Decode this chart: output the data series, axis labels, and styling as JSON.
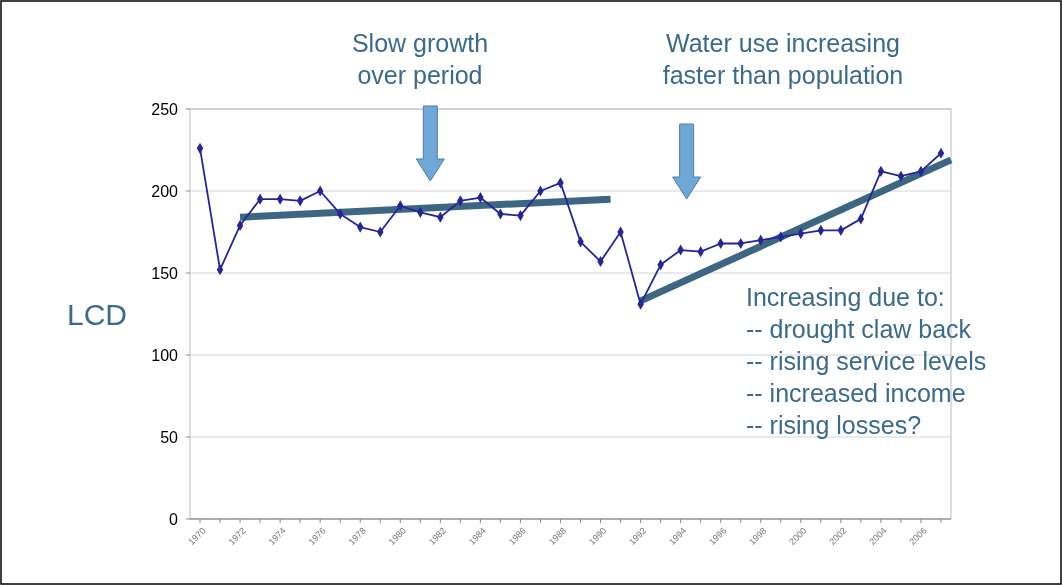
{
  "chart_data": {
    "type": "line",
    "ylabel": "LCD",
    "x": [
      1970,
      1971,
      1972,
      1973,
      1974,
      1975,
      1976,
      1977,
      1978,
      1979,
      1980,
      1981,
      1982,
      1983,
      1984,
      1985,
      1986,
      1987,
      1988,
      1989,
      1990,
      1991,
      1992,
      1993,
      1994,
      1995,
      1996,
      1997,
      1998,
      1999,
      2000,
      2001,
      2002,
      2003,
      2004,
      2005,
      2006,
      2007
    ],
    "series": [
      {
        "color": "#25259a",
        "marker": "diamond",
        "values": [
          226,
          152,
          179,
          195,
          195,
          194,
          200,
          186,
          178,
          175,
          191,
          187,
          184,
          194,
          196,
          186,
          185,
          200,
          205,
          169,
          157,
          175,
          131,
          155,
          164,
          163,
          168,
          168,
          170,
          172,
          174,
          176,
          176,
          183,
          212,
          209,
          212,
          223
        ]
      },
      {
        "type": "line",
        "color": "#3d6683",
        "marker": "none",
        "x": [
          1972,
          1990.5
        ],
        "values": [
          184,
          195
        ]
      },
      {
        "type": "line",
        "color": "#3d6683",
        "marker": "none",
        "x": [
          1992,
          2007.5
        ],
        "values": [
          133,
          219
        ]
      }
    ],
    "xlim": [
      1969.5,
      2007.5
    ],
    "xticks": [
      1970,
      {
        "value": 1971,
        "label": null
      },
      1972,
      {
        "value": 1973,
        "label": null
      },
      1974,
      {
        "value": 1975,
        "label": null
      },
      1976,
      {
        "value": 1977,
        "label": null
      },
      1978,
      {
        "value": 1979,
        "label": null
      },
      1980,
      {
        "value": 1981,
        "label": null
      },
      1982,
      {
        "value": 1983,
        "label": null
      },
      1984,
      {
        "value": 1985,
        "label": null
      },
      1986,
      {
        "value": 1987,
        "label": null
      },
      1988,
      {
        "value": 1989,
        "label": null
      },
      1990,
      {
        "value": 1991,
        "label": null
      },
      1992,
      {
        "value": 1993,
        "label": null
      },
      1994,
      {
        "value": 1995,
        "label": null
      },
      1996,
      {
        "value": 1997,
        "label": null
      },
      1998,
      {
        "value": 1999,
        "label": null
      },
      2000,
      {
        "value": 2001,
        "label": null
      },
      2002,
      {
        "value": 2003,
        "label": null
      },
      2004,
      {
        "value": 2005,
        "label": null
      },
      2006,
      {
        "value": 2007,
        "label": null
      }
    ],
    "ylim": [
      0,
      250
    ],
    "yticks": [
      0,
      50,
      100,
      150,
      200,
      250
    ],
    "grid": "y",
    "annotations": [
      "Slow growth\nover period",
      "Water use increasing\nfaster than population",
      "Increasing due to:\n-- drought claw back\n-- rising service levels\n-- increased income\n-- rising losses?"
    ]
  }
}
